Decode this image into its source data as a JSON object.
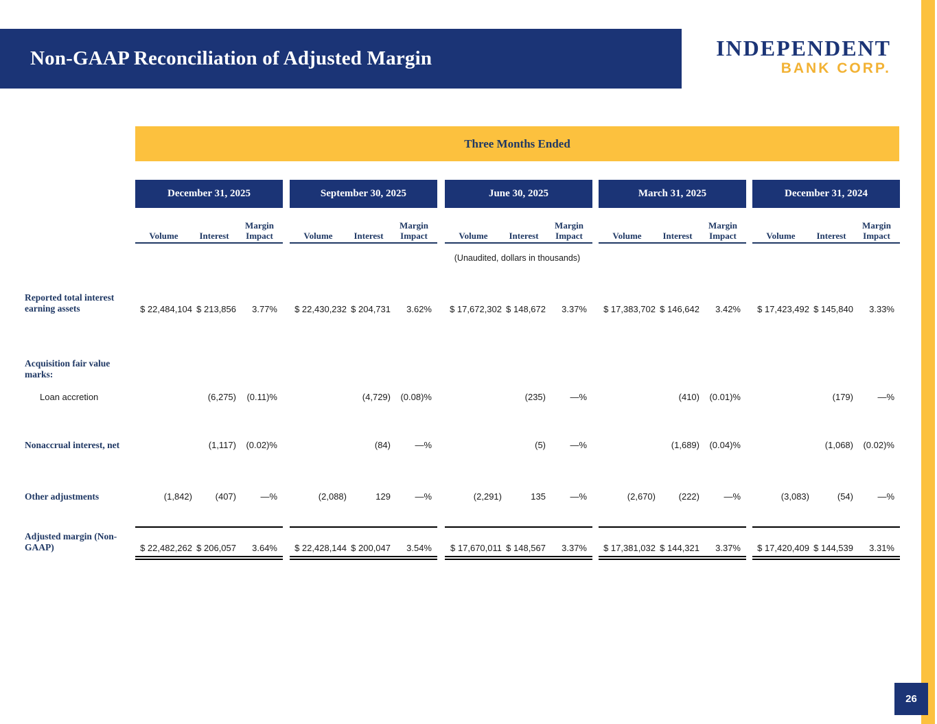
{
  "page": {
    "title": "Non-GAAP Reconciliation of Adjusted Margin",
    "page_number": "26",
    "logo": {
      "line1": "INDEPENDENT",
      "line2": "BANK CORP."
    }
  },
  "colors": {
    "navy": "#1b3476",
    "text_navy": "#1f3864",
    "gold": "#fcc13e",
    "logo_gold": "#f2b234"
  },
  "table": {
    "banner": "Three Months Ended",
    "note": "(Unaudited, dollars in thousands)",
    "column_headers": [
      "Volume",
      "Interest",
      "Margin Impact"
    ],
    "row_labels": [
      "Reported total interest earning assets",
      "Acquisition fair value marks:",
      "Loan accretion",
      "Nonaccrual interest, net",
      "Other adjustments",
      "Adjusted margin (Non-GAAP)"
    ],
    "periods": [
      {
        "label": "December 31, 2025",
        "reported": {
          "volume": "$ 22,484,104",
          "interest": "$ 213,856",
          "margin": "3.77%"
        },
        "loan_accretion": {
          "volume": "",
          "interest": "(6,275)",
          "margin": "(0.11)%"
        },
        "nonaccrual": {
          "volume": "",
          "interest": "(1,117)",
          "margin": "(0.02)%"
        },
        "other": {
          "volume": "(1,842)",
          "interest": "(407)",
          "margin": "—%"
        },
        "adjusted": {
          "volume": "$ 22,482,262",
          "interest": "$ 206,057",
          "margin": "3.64%"
        }
      },
      {
        "label": "September 30, 2025",
        "reported": {
          "volume": "$ 22,430,232",
          "interest": "$ 204,731",
          "margin": "3.62%"
        },
        "loan_accretion": {
          "volume": "",
          "interest": "(4,729)",
          "margin": "(0.08)%"
        },
        "nonaccrual": {
          "volume": "",
          "interest": "(84)",
          "margin": "—%"
        },
        "other": {
          "volume": "(2,088)",
          "interest": "129",
          "margin": "—%"
        },
        "adjusted": {
          "volume": "$ 22,428,144",
          "interest": "$ 200,047",
          "margin": "3.54%"
        }
      },
      {
        "label": "June 30, 2025",
        "reported": {
          "volume": "$ 17,672,302",
          "interest": "$ 148,672",
          "margin": "3.37%"
        },
        "loan_accretion": {
          "volume": "",
          "interest": "(235)",
          "margin": "—%"
        },
        "nonaccrual": {
          "volume": "",
          "interest": "(5)",
          "margin": "—%"
        },
        "other": {
          "volume": "(2,291)",
          "interest": "135",
          "margin": "—%"
        },
        "adjusted": {
          "volume": "$ 17,670,011",
          "interest": "$ 148,567",
          "margin": "3.37%"
        }
      },
      {
        "label": "March 31, 2025",
        "reported": {
          "volume": "$ 17,383,702",
          "interest": "$ 146,642",
          "margin": "3.42%"
        },
        "loan_accretion": {
          "volume": "",
          "interest": "(410)",
          "margin": "(0.01)%"
        },
        "nonaccrual": {
          "volume": "",
          "interest": "(1,689)",
          "margin": "(0.04)%"
        },
        "other": {
          "volume": "(2,670)",
          "interest": "(222)",
          "margin": "—%"
        },
        "adjusted": {
          "volume": "$ 17,381,032",
          "interest": "$ 144,321",
          "margin": "3.37%"
        }
      },
      {
        "label": "December 31, 2024",
        "reported": {
          "volume": "$ 17,423,492",
          "interest": "$ 145,840",
          "margin": "3.33%"
        },
        "loan_accretion": {
          "volume": "",
          "interest": "(179)",
          "margin": "—%"
        },
        "nonaccrual": {
          "volume": "",
          "interest": "(1,068)",
          "margin": "(0.02)%"
        },
        "other": {
          "volume": "(3,083)",
          "interest": "(54)",
          "margin": "—%"
        },
        "adjusted": {
          "volume": "$ 17,420,409",
          "interest": "$ 144,539",
          "margin": "3.31%"
        }
      }
    ]
  }
}
